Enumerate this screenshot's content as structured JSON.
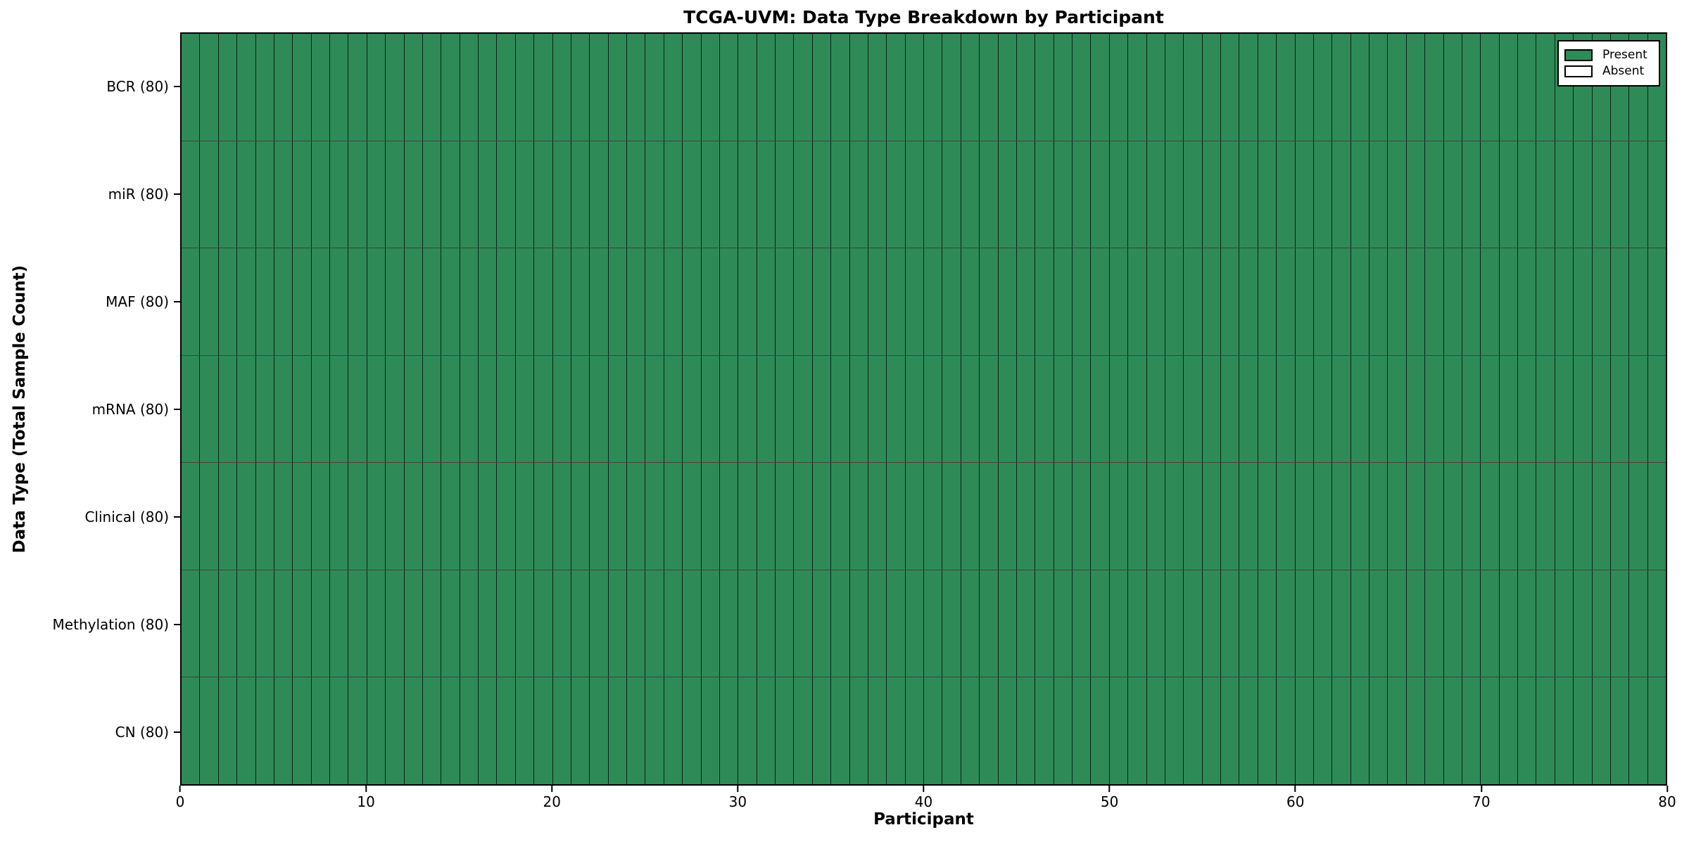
{
  "chart_data": {
    "type": "heatmap",
    "title": "TCGA-UVM: Data Type Breakdown by Participant",
    "xlabel": "Participant",
    "ylabel": "Data Type (Total Sample Count)",
    "x_range": [
      0,
      80
    ],
    "x_ticks": [
      0,
      10,
      20,
      30,
      40,
      50,
      60,
      70,
      80
    ],
    "n_participants": 80,
    "rows": [
      {
        "label": "BCR",
        "tick_label": "BCR (80)",
        "total_samples": 80,
        "present_count": 80,
        "absent_count": 0
      },
      {
        "label": "miR",
        "tick_label": "miR (80)",
        "total_samples": 80,
        "present_count": 80,
        "absent_count": 0
      },
      {
        "label": "MAF",
        "tick_label": "MAF (80)",
        "total_samples": 80,
        "present_count": 80,
        "absent_count": 0
      },
      {
        "label": "mRNA",
        "tick_label": "mRNA (80)",
        "total_samples": 80,
        "present_count": 80,
        "absent_count": 0
      },
      {
        "label": "Clinical",
        "tick_label": "Clinical (80)",
        "total_samples": 80,
        "present_count": 80,
        "absent_count": 0
      },
      {
        "label": "Methylation",
        "tick_label": "Methylation (80)",
        "total_samples": 80,
        "present_count": 80,
        "absent_count": 0
      },
      {
        "label": "CN",
        "tick_label": "CN (80)",
        "total_samples": 80,
        "present_count": 80,
        "absent_count": 0
      }
    ],
    "legend": [
      {
        "label": "Present",
        "color": "#2e8b57"
      },
      {
        "label": "Absent",
        "color": "#ffffff"
      }
    ],
    "legend_position": "upper right",
    "grid": "per-cell black edges",
    "colors": {
      "present": "#2e8b57",
      "absent": "#ffffff",
      "cell_edge": "#000000",
      "spine": "#000000",
      "background": "#ffffff",
      "text": "#000000"
    }
  }
}
